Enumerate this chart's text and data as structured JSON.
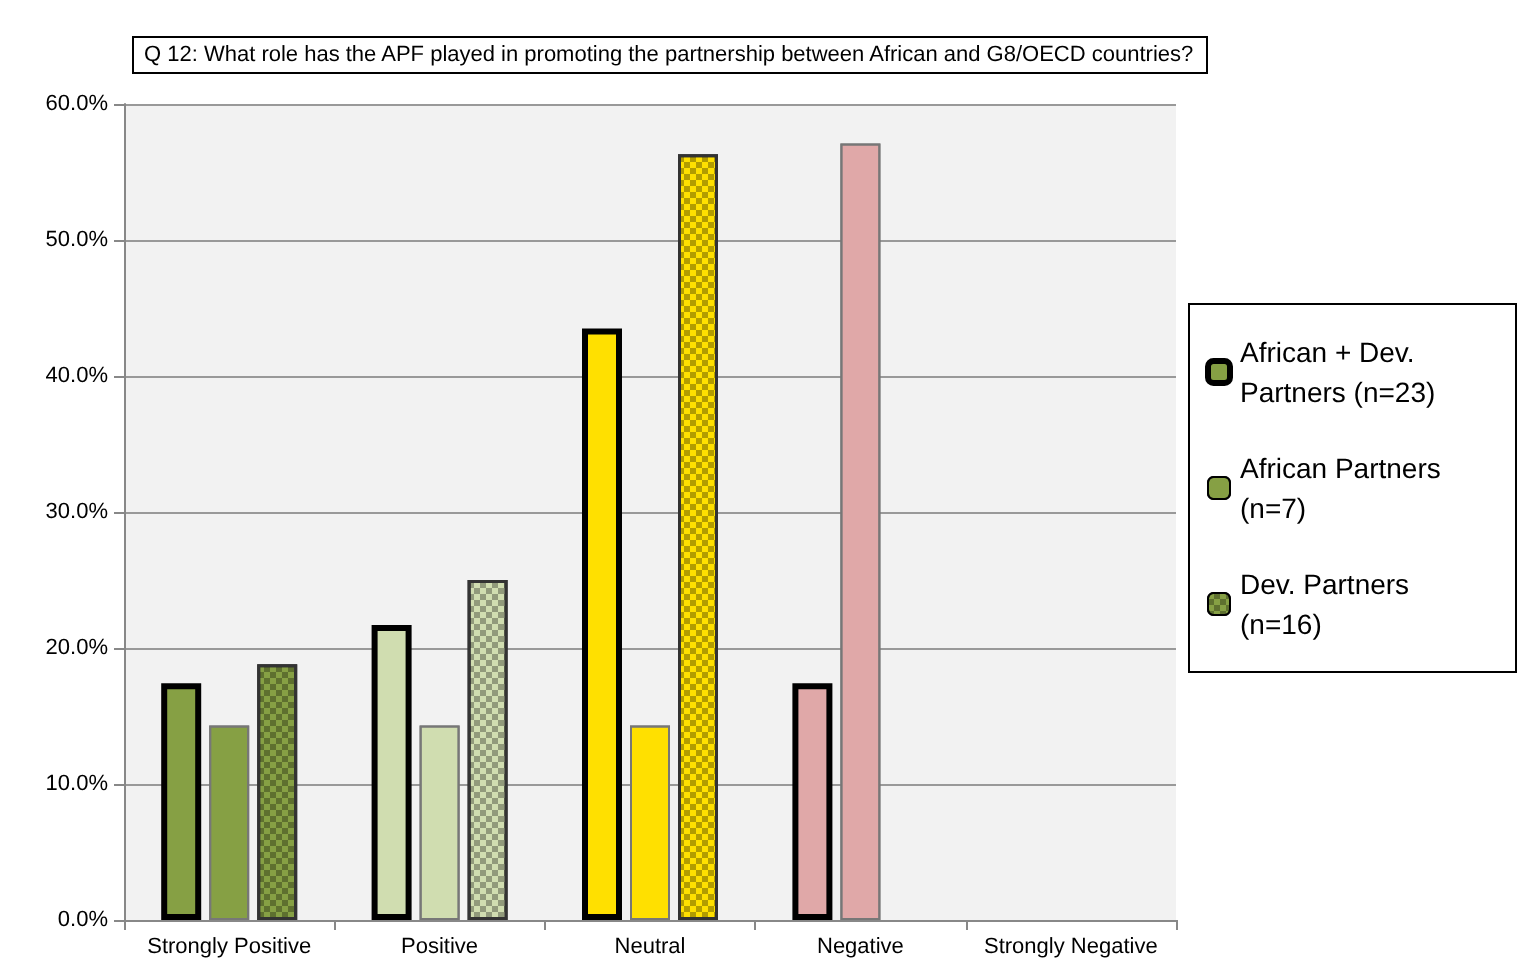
{
  "chart_data": {
    "type": "bar",
    "title": "Q 12: What role has the APF played in promoting the partnership between African and G8/OECD countries?",
    "categories": [
      "Strongly Positive",
      "Positive",
      "Neutral",
      "Negative",
      "Strongly Negative"
    ],
    "series": [
      {
        "name": "African + Dev. Partners (n=23)",
        "colors": [
          "#86a044",
          "#d0ddb0",
          "#ffe000",
          "#e0a8a8",
          "#e0a8a8"
        ],
        "values": [
          17.4,
          21.7,
          43.5,
          17.4,
          0
        ]
      },
      {
        "name": "African Partners (n=7)",
        "colors": [
          "#86a044",
          "#d0ddb0",
          "#ffe000",
          "#e0a8a8",
          "#e0a8a8"
        ],
        "values": [
          14.3,
          14.3,
          14.3,
          57.1,
          0
        ]
      },
      {
        "name": "Dev. Partners (n=16)",
        "colors": [
          "#86a044",
          "#d0ddb0",
          "#ffe000",
          "#e0a8a8",
          "#e0a8a8"
        ],
        "values": [
          18.8,
          25.0,
          56.3,
          0,
          0
        ]
      }
    ],
    "ylim": [
      0,
      60
    ],
    "yticks": [
      {
        "value": 0,
        "label": "0.0%"
      },
      {
        "value": 10,
        "label": "10.0%"
      },
      {
        "value": 20,
        "label": "20.0%"
      },
      {
        "value": 30,
        "label": "30.0%"
      },
      {
        "value": 40,
        "label": "40.0%"
      },
      {
        "value": 50,
        "label": "50.0%"
      },
      {
        "value": 60,
        "label": "60.0%"
      }
    ],
    "grid": "y",
    "legend": "right"
  }
}
